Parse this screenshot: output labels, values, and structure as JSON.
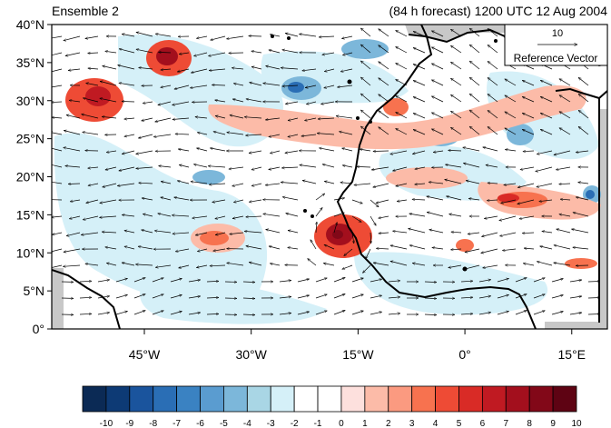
{
  "title_left": "Ensemble 2",
  "title_right": "(84 h forecast) 1200 UTC 12 Aug 2004",
  "lat_labels": [
    "40°N",
    "35°N",
    "30°N",
    "25°N",
    "20°N",
    "15°N",
    "10°N",
    "5°N",
    "0°"
  ],
  "lat_values": [
    40,
    35,
    30,
    25,
    20,
    15,
    10,
    5,
    0
  ],
  "lon_labels": [
    "45°W",
    "30°W",
    "15°W",
    "0°",
    "15°E"
  ],
  "lon_values": [
    -45,
    -30,
    -15,
    0,
    15
  ],
  "reference_vector": {
    "magnitude": "10",
    "label": "Reference Vector"
  },
  "colorbar": {
    "tick_labels": [
      "-10",
      "-9",
      "-8",
      "-7",
      "-6",
      "-5",
      "-4",
      "-3",
      "-2",
      "-1",
      "0",
      "1",
      "2",
      "3",
      "4",
      "5",
      "6",
      "7",
      "8",
      "9",
      "10"
    ],
    "colors": [
      "#0b2a55",
      "#0d3a75",
      "#1a549d",
      "#2a6eb5",
      "#3a82c2",
      "#5a9cd0",
      "#7cb7da",
      "#a9d6e5",
      "#d5f0f8",
      "#ffffff",
      "#ffffff",
      "#fde0dd",
      "#fcbba8",
      "#fb9a80",
      "#f7724f",
      "#ee4b35",
      "#d92b26",
      "#c01a22",
      "#a30f1d",
      "#820818",
      "#5e0313"
    ]
  },
  "map": {
    "lon_range": [
      -58,
      20
    ],
    "lat_range": [
      0,
      40
    ],
    "land_color": "#c8c8c8"
  }
}
